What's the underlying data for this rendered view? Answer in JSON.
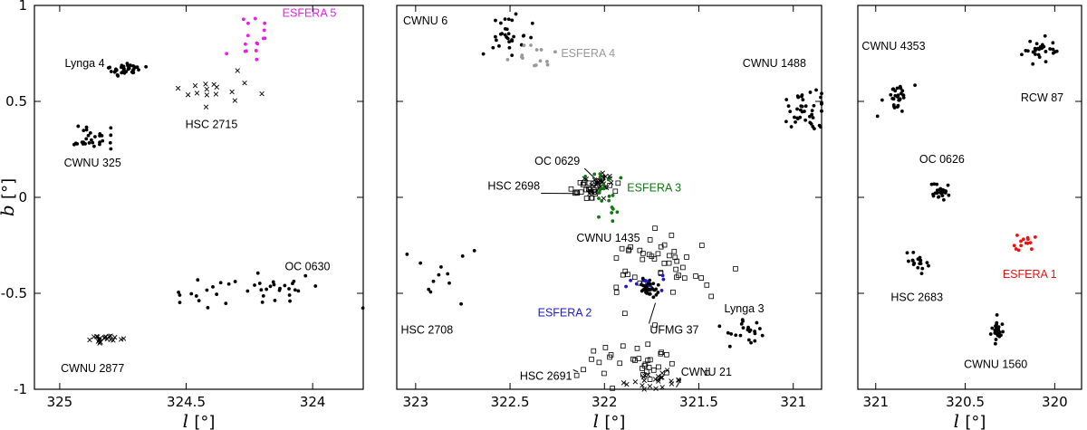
{
  "chart_data": [
    {
      "type": "scatter",
      "xlabel": "l",
      "xunit": "[°]",
      "ylabel": "b",
      "yunit": "[°]",
      "xlim": [
        325.1,
        323.8
      ],
      "ylim": [
        -1,
        1
      ],
      "xticks": [
        325,
        324.5,
        324
      ],
      "xtick_labels": [
        "325",
        "324.5",
        "324"
      ],
      "yticks": [
        1,
        0.5,
        0,
        -0.5,
        -1
      ],
      "ytick_labels": [
        "1",
        "0.5",
        "0",
        "-0.5",
        "-1"
      ],
      "grid": false,
      "clusters": [
        {
          "name": "ESFERA 5",
          "color": "#e81ee8",
          "marker": "dot",
          "center": [
            324.25,
            0.83
          ],
          "spread": [
            0.1,
            0.09
          ],
          "count": 16,
          "label_pos": [
            324.12,
            0.94
          ],
          "anchor": "start"
        },
        {
          "name": "Lynga 4",
          "color": "#000000",
          "marker": "dot",
          "center": [
            324.74,
            0.66
          ],
          "spread": [
            0.06,
            0.035
          ],
          "count": 38,
          "label_pos": [
            324.98,
            0.68
          ],
          "anchor": "start"
        },
        {
          "name": "HSC 2715",
          "color": "#000000",
          "marker": "cross",
          "center": [
            324.38,
            0.55
          ],
          "spread": [
            0.18,
            0.08
          ],
          "count": 16,
          "label_pos": [
            324.4,
            0.36
          ],
          "anchor": "middle"
        },
        {
          "name": "CWNU 325",
          "color": "#000000",
          "marker": "dot",
          "center": [
            324.87,
            0.31
          ],
          "spread": [
            0.07,
            0.05
          ],
          "count": 30,
          "label_pos": [
            324.87,
            0.16
          ],
          "anchor": "middle"
        },
        {
          "name": "OC 0630",
          "color": "#000000",
          "marker": "dot",
          "center": [
            324.22,
            -0.49
          ],
          "spread": [
            0.32,
            0.08
          ],
          "count": 40,
          "label_pos": [
            324.11,
            -0.38
          ],
          "anchor": "start"
        },
        {
          "name": "CWNU 2877",
          "color": "#000000",
          "marker": "cross",
          "center": [
            324.82,
            -0.74
          ],
          "spread": [
            0.06,
            0.025
          ],
          "count": 22,
          "label_pos": [
            324.87,
            -0.91
          ],
          "anchor": "middle"
        }
      ]
    },
    {
      "type": "scatter",
      "xlabel": "l",
      "xunit": "[°]",
      "ylabel": "",
      "xlim": [
        323.1,
        320.85
      ],
      "ylim": [
        -1,
        1
      ],
      "xticks": [
        323,
        322.5,
        322,
        321.5,
        321
      ],
      "xtick_labels": [
        "323",
        "322.5",
        "322",
        "321.5",
        "321"
      ],
      "grid": false,
      "clusters": [
        {
          "name": "CWNU 6",
          "color": "#000000",
          "marker": "dot",
          "center": [
            322.5,
            0.84
          ],
          "spread": [
            0.1,
            0.08
          ],
          "count": 30,
          "label_pos": [
            322.83,
            0.9
          ],
          "anchor": "end"
        },
        {
          "name": "ESFERA 4",
          "color": "#999999",
          "marker": "dot",
          "center": [
            322.37,
            0.73
          ],
          "spread": [
            0.1,
            0.07
          ],
          "count": 14,
          "label_pos": [
            322.23,
            0.73
          ],
          "anchor": "start"
        },
        {
          "name": "CWNU 1488",
          "color": "#000000",
          "marker": "dot",
          "center": [
            320.94,
            0.44
          ],
          "spread": [
            0.09,
            0.1
          ],
          "count": 42,
          "label_pos": [
            321.1,
            0.68
          ],
          "anchor": "middle"
        },
        {
          "name": "OC 0629",
          "color": "#000000",
          "marker": "cross",
          "center": [
            322.02,
            0.07
          ],
          "spread": [
            0.06,
            0.05
          ],
          "count": 26,
          "label_pos": [
            322.25,
            0.17
          ],
          "anchor": "middle",
          "line_to": [
            322.02,
            0.07
          ]
        },
        {
          "name": "HSC 2698",
          "color": "#000000",
          "marker": "square",
          "center": [
            322.07,
            0.04
          ],
          "spread": [
            0.12,
            0.05
          ],
          "count": 30,
          "label_pos": [
            322.48,
            0.04
          ],
          "anchor": "middle",
          "line_to": [
            322.16,
            0.02
          ]
        },
        {
          "name": "ESFERA 3",
          "color": "#117711",
          "marker": "dot",
          "center": [
            321.98,
            0.02
          ],
          "spread": [
            0.1,
            0.14
          ],
          "count": 22,
          "label_pos": [
            321.88,
            0.03
          ],
          "anchor": "start"
        },
        {
          "name": "CWNU 1435",
          "color": "#000000",
          "marker": "square",
          "center": [
            321.7,
            -0.38
          ],
          "spread": [
            0.22,
            0.17
          ],
          "count": 50,
          "label_pos": [
            321.98,
            -0.23
          ],
          "anchor": "middle"
        },
        {
          "name": "ESFERA 2",
          "color": "#1a1acc",
          "marker": "dot",
          "center": [
            321.8,
            -0.44
          ],
          "spread": [
            0.1,
            0.05
          ],
          "count": 12,
          "label_pos": [
            322.21,
            -0.62
          ],
          "anchor": "middle"
        },
        {
          "name": "UFMG 37",
          "color": "#000000",
          "marker": "dot",
          "center": [
            321.76,
            -0.47
          ],
          "spread": [
            0.05,
            0.05
          ],
          "count": 30,
          "label_pos": [
            321.63,
            -0.71
          ],
          "anchor": "middle",
          "line_to": [
            321.73,
            -0.55
          ]
        },
        {
          "name": "HSC 2708",
          "color": "#000000",
          "marker": "dot",
          "center": [
            322.86,
            -0.42
          ],
          "spread": [
            0.14,
            0.15
          ],
          "count": 12,
          "label_pos": [
            322.94,
            -0.71
          ],
          "anchor": "middle"
        },
        {
          "name": "Lynga 3",
          "color": "#000000",
          "marker": "dot",
          "center": [
            321.26,
            -0.7
          ],
          "spread": [
            0.1,
            0.05
          ],
          "count": 22,
          "label_pos": [
            321.26,
            -0.6
          ],
          "anchor": "middle"
        },
        {
          "name": "HSC 2691",
          "color": "#000000",
          "marker": "square",
          "center": [
            321.85,
            -0.86
          ],
          "spread": [
            0.27,
            0.1
          ],
          "count": 34,
          "label_pos": [
            322.31,
            -0.95
          ],
          "anchor": "middle",
          "line_to": [
            322.14,
            -0.91
          ]
        },
        {
          "name": "CWNU 21",
          "color": "#000000",
          "marker": "cross",
          "center": [
            321.72,
            -0.95
          ],
          "spread": [
            0.14,
            0.05
          ],
          "count": 24,
          "label_pos": [
            321.46,
            -0.93
          ],
          "anchor": "middle",
          "line_to": [
            321.62,
            -0.99
          ]
        }
      ]
    },
    {
      "type": "scatter",
      "xlabel": "l",
      "xunit": "[°]",
      "ylabel": "",
      "xlim": [
        321.1,
        319.85
      ],
      "ylim": [
        -1,
        1
      ],
      "xticks": [
        321,
        320.5,
        320
      ],
      "xtick_labels": [
        "321",
        "320.5",
        "320"
      ],
      "grid": false,
      "clusters": [
        {
          "name": "CWNU 4353",
          "color": "#000000",
          "marker": "dot",
          "center": [
            320.88,
            0.5
          ],
          "spread": [
            0.07,
            0.08
          ],
          "count": 30,
          "label_pos": [
            320.9,
            0.77
          ],
          "anchor": "middle"
        },
        {
          "name": "RCW 87",
          "color": "#000000",
          "marker": "dot",
          "center": [
            320.08,
            0.77
          ],
          "spread": [
            0.1,
            0.06
          ],
          "count": 30,
          "label_pos": [
            320.07,
            0.5
          ],
          "anchor": "middle"
        },
        {
          "name": "OC 0626",
          "color": "#000000",
          "marker": "dot",
          "center": [
            320.64,
            0.03
          ],
          "spread": [
            0.04,
            0.04
          ],
          "count": 32,
          "label_pos": [
            320.63,
            0.18
          ],
          "anchor": "middle"
        },
        {
          "name": "ESFERA 1",
          "color": "#ee1111",
          "marker": "dot",
          "center": [
            320.17,
            -0.24
          ],
          "spread": [
            0.07,
            0.04
          ],
          "count": 14,
          "label_pos": [
            320.14,
            -0.42
          ],
          "anchor": "middle"
        },
        {
          "name": "HSC 2683",
          "color": "#000000",
          "marker": "dot",
          "center": [
            320.77,
            -0.34
          ],
          "spread": [
            0.06,
            0.05
          ],
          "count": 20,
          "label_pos": [
            320.77,
            -0.54
          ],
          "anchor": "middle"
        },
        {
          "name": "CWNU 1560",
          "color": "#000000",
          "marker": "dot",
          "center": [
            320.32,
            -0.7
          ],
          "spread": [
            0.03,
            0.05
          ],
          "count": 32,
          "label_pos": [
            320.33,
            -0.89
          ],
          "anchor": "middle"
        }
      ]
    }
  ]
}
